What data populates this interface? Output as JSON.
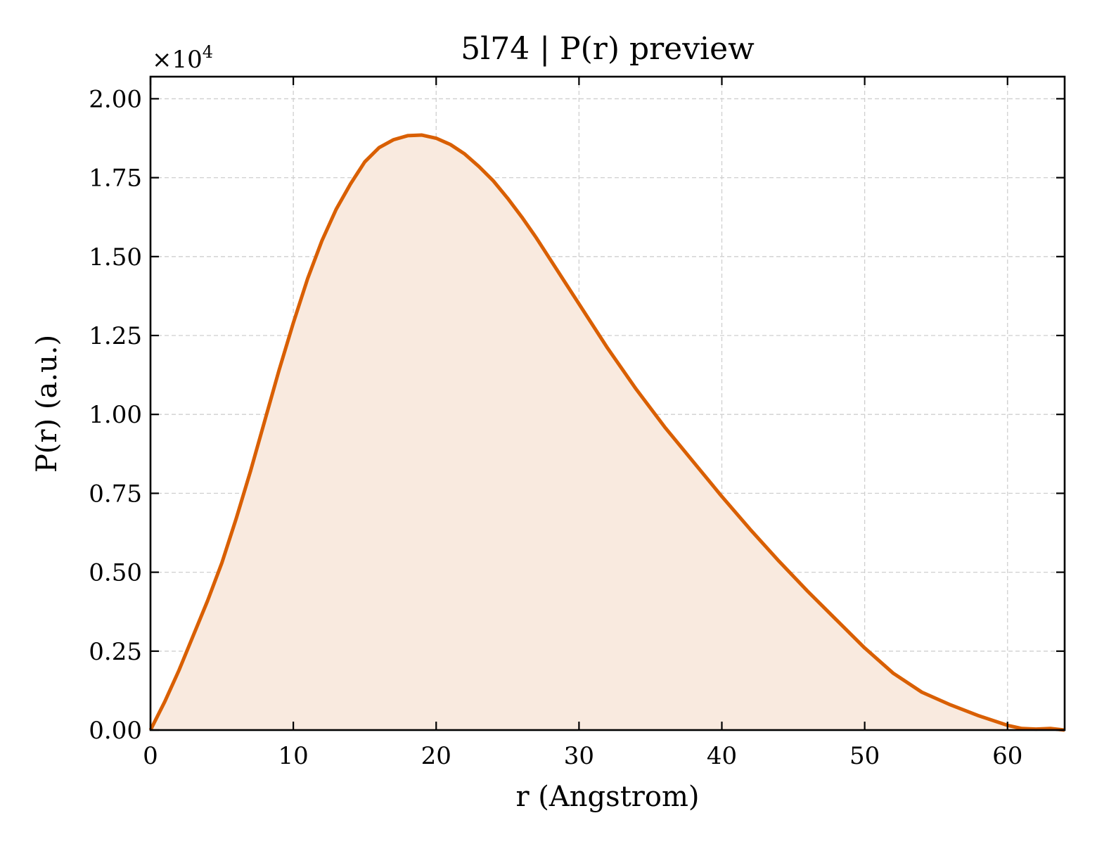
{
  "chart_data": {
    "type": "area",
    "title": "5l74 | P(r) preview",
    "xlabel": "r (Angstrom)",
    "ylabel": "P(r) (a.u.)",
    "y_multiplier_label": "×10",
    "y_multiplier_exponent": "4",
    "xlim": [
      0,
      64
    ],
    "ylim": [
      0,
      2.07
    ],
    "x_ticks": [
      0,
      10,
      20,
      30,
      40,
      50,
      60
    ],
    "x_tick_labels": [
      "0",
      "10",
      "20",
      "30",
      "40",
      "50",
      "60"
    ],
    "y_ticks": [
      0,
      0.25,
      0.5,
      0.75,
      1.0,
      1.25,
      1.5,
      1.75,
      2.0
    ],
    "y_tick_labels": [
      "0.00",
      "0.25",
      "0.50",
      "0.75",
      "1.00",
      "1.25",
      "1.50",
      "1.75",
      "2.00"
    ],
    "grid": true,
    "colors": {
      "line": "#d95f02",
      "fill": "#f9eadf"
    },
    "series": [
      {
        "x": [
          0,
          1,
          2,
          3,
          4,
          5,
          6,
          7,
          8,
          9,
          10,
          11,
          12,
          13,
          14,
          15,
          16,
          17,
          18,
          19,
          20,
          21,
          22,
          23,
          24,
          25,
          26,
          27,
          28,
          29,
          30,
          32,
          34,
          36,
          38,
          40,
          42,
          44,
          46,
          48,
          50,
          52,
          54,
          56,
          58,
          60,
          61,
          62,
          63,
          64
        ],
        "y": [
          0,
          0.09,
          0.19,
          0.3,
          0.41,
          0.53,
          0.67,
          0.82,
          0.98,
          1.14,
          1.29,
          1.43,
          1.55,
          1.65,
          1.73,
          1.8,
          1.845,
          1.87,
          1.883,
          1.885,
          1.875,
          1.855,
          1.825,
          1.785,
          1.74,
          1.685,
          1.625,
          1.56,
          1.49,
          1.42,
          1.35,
          1.21,
          1.08,
          0.96,
          0.85,
          0.74,
          0.635,
          0.535,
          0.44,
          0.35,
          0.26,
          0.18,
          0.12,
          0.08,
          0.045,
          0.015,
          0.005,
          0.003,
          0.005,
          0.0
        ]
      }
    ]
  }
}
